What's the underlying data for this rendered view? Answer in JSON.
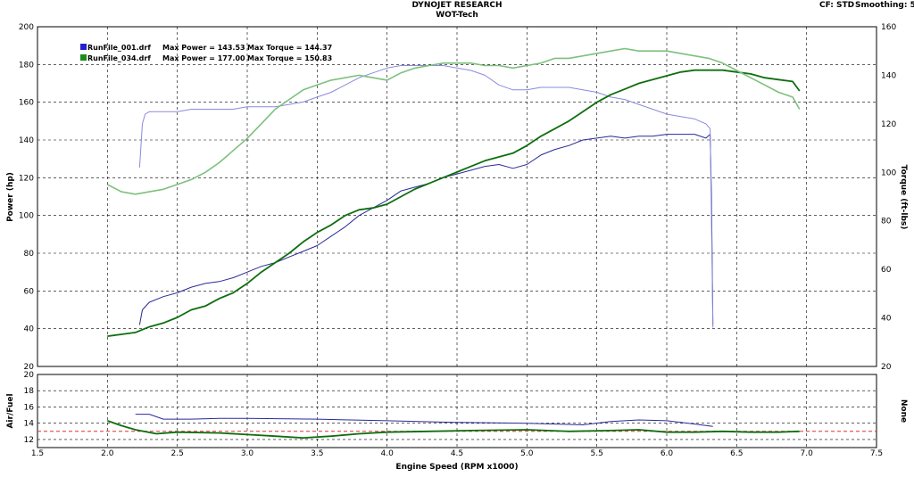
{
  "header": {
    "title": "DYNOJET RESEARCH",
    "subtitle": "WOT-Tech",
    "cf_label": "CF: STD",
    "smoothing_label": "Smoothing: 5"
  },
  "chart_data": [
    {
      "type": "line",
      "xlabel": "Engine Speed (RPM x1000)",
      "ylabel": "Power (hp)",
      "y2label": "Torque (ft-lbs)",
      "xlim": [
        1.5,
        7.5
      ],
      "ylim": [
        20,
        200
      ],
      "y2lim": [
        20,
        160
      ],
      "x_ticks": [
        "1.5",
        "2.0",
        "2.5",
        "3.0",
        "3.5",
        "4.0",
        "4.5",
        "5.0",
        "5.5",
        "6.0",
        "6.5",
        "7.0",
        "7.5"
      ],
      "y_ticks": [
        "20",
        "40",
        "60",
        "80",
        "100",
        "120",
        "140",
        "160",
        "180",
        "200"
      ],
      "y2_ticks": [
        "20",
        "40",
        "60",
        "80",
        "100",
        "120",
        "140",
        "160"
      ],
      "grid": true,
      "legend_position": "top-left",
      "legend": [
        {
          "file": "RunFile_001.drf",
          "max_power_label": "Max Power = 143.53",
          "max_torque_label": "Max Torque = 144.37",
          "color": "#2222cc"
        },
        {
          "file": "RunFile_034.drf",
          "max_power_label": "Max Power = 177.00",
          "max_torque_label": "Max Torque = 150.83",
          "color": "#1a8c1a"
        }
      ],
      "series": [
        {
          "name": "RunFile_001.drf",
          "measure": "power",
          "axis": "left",
          "color": "#2a2a9a",
          "x": [
            2.23,
            2.25,
            2.3,
            2.4,
            2.5,
            2.6,
            2.7,
            2.8,
            2.9,
            3.0,
            3.1,
            3.2,
            3.3,
            3.4,
            3.5,
            3.6,
            3.7,
            3.8,
            3.9,
            4.0,
            4.1,
            4.2,
            4.3,
            4.4,
            4.5,
            4.6,
            4.7,
            4.8,
            4.9,
            5.0,
            5.1,
            5.2,
            5.3,
            5.4,
            5.5,
            5.6,
            5.7,
            5.8,
            5.9,
            6.0,
            6.1,
            6.2,
            6.28,
            6.31,
            6.32,
            6.33
          ],
          "y": [
            42,
            50,
            54,
            57,
            59,
            62,
            64,
            65,
            67,
            70,
            73,
            75,
            78,
            81,
            84,
            89,
            94,
            100,
            104,
            108,
            113,
            115,
            117,
            120,
            122,
            124,
            126,
            127,
            125,
            127,
            132,
            135,
            137,
            140,
            141,
            142,
            141,
            142,
            142,
            143,
            143,
            143,
            141,
            143,
            110,
            42
          ]
        },
        {
          "name": "RunFile_001.drf",
          "measure": "torque",
          "axis": "right",
          "color": "#8a8ae0",
          "x": [
            2.23,
            2.25,
            2.27,
            2.3,
            2.4,
            2.5,
            2.6,
            2.7,
            2.8,
            2.9,
            3.0,
            3.1,
            3.2,
            3.3,
            3.4,
            3.5,
            3.6,
            3.7,
            3.8,
            3.9,
            4.0,
            4.1,
            4.2,
            4.3,
            4.4,
            4.5,
            4.6,
            4.7,
            4.8,
            4.9,
            5.0,
            5.1,
            5.2,
            5.3,
            5.4,
            5.5,
            5.6,
            5.7,
            5.8,
            5.9,
            6.0,
            6.1,
            6.2,
            6.28,
            6.31,
            6.32,
            6.33
          ],
          "y": [
            102,
            120,
            124,
            125,
            125,
            125,
            126,
            126,
            126,
            126,
            127,
            127,
            127,
            128,
            129,
            131,
            133,
            136,
            139,
            141,
            143,
            144,
            144,
            144,
            144,
            143,
            142,
            140,
            136,
            134,
            134,
            135,
            135,
            135,
            134,
            133,
            131,
            130,
            128,
            126,
            124,
            123,
            122,
            120,
            118,
            80,
            36
          ]
        },
        {
          "name": "RunFile_034.drf",
          "measure": "power",
          "axis": "left",
          "color": "#0e6e0e",
          "x": [
            2.0,
            2.1,
            2.2,
            2.3,
            2.4,
            2.5,
            2.6,
            2.7,
            2.8,
            2.9,
            3.0,
            3.1,
            3.2,
            3.3,
            3.4,
            3.5,
            3.6,
            3.7,
            3.8,
            3.9,
            4.0,
            4.1,
            4.2,
            4.3,
            4.4,
            4.5,
            4.6,
            4.7,
            4.8,
            4.9,
            5.0,
            5.1,
            5.2,
            5.3,
            5.4,
            5.5,
            5.6,
            5.7,
            5.8,
            5.9,
            6.0,
            6.1,
            6.2,
            6.3,
            6.4,
            6.5,
            6.6,
            6.7,
            6.8,
            6.9,
            6.95
          ],
          "y": [
            36,
            37,
            38,
            41,
            43,
            46,
            50,
            52,
            56,
            59,
            64,
            70,
            75,
            80,
            86,
            91,
            95,
            100,
            103,
            104,
            106,
            110,
            114,
            117,
            120,
            123,
            126,
            129,
            131,
            133,
            137,
            142,
            146,
            150,
            155,
            160,
            164,
            167,
            170,
            172,
            174,
            176,
            177,
            177,
            177,
            176,
            175,
            173,
            172,
            171,
            166
          ]
        },
        {
          "name": "RunFile_034.drf",
          "measure": "torque",
          "axis": "right",
          "color": "#7dc07d",
          "x": [
            2.0,
            2.1,
            2.2,
            2.3,
            2.4,
            2.5,
            2.6,
            2.7,
            2.8,
            2.9,
            3.0,
            3.1,
            3.2,
            3.3,
            3.4,
            3.5,
            3.6,
            3.7,
            3.8,
            3.9,
            4.0,
            4.1,
            4.2,
            4.3,
            4.4,
            4.5,
            4.6,
            4.7,
            4.8,
            4.9,
            5.0,
            5.1,
            5.2,
            5.3,
            5.4,
            5.5,
            5.6,
            5.7,
            5.8,
            5.9,
            6.0,
            6.1,
            6.2,
            6.3,
            6.4,
            6.5,
            6.6,
            6.7,
            6.8,
            6.9,
            6.95
          ],
          "y": [
            95,
            92,
            91,
            92,
            93,
            95,
            97,
            100,
            104,
            109,
            114,
            120,
            126,
            130,
            134,
            136,
            138,
            139,
            140,
            139,
            138,
            141,
            143,
            144,
            145,
            145,
            145,
            144,
            144,
            143,
            144,
            145,
            147,
            147,
            148,
            149,
            150,
            151,
            150,
            150,
            150,
            149,
            148,
            147,
            145,
            142,
            139,
            136,
            133,
            131,
            126
          ]
        }
      ]
    },
    {
      "type": "line",
      "xlabel": "Engine Speed (RPM x1000)",
      "ylabel": "Air/Fuel",
      "y2label": "None",
      "xlim": [
        1.5,
        7.5
      ],
      "ylim": [
        11,
        20
      ],
      "y_ticks": [
        "12",
        "14",
        "16",
        "18",
        "20"
      ],
      "grid": true,
      "reference_line": {
        "y": 13,
        "color": "#e03030",
        "style": "dashed"
      },
      "series": [
        {
          "name": "RunFile_001.drf",
          "color": "#2a2a9a",
          "x": [
            2.2,
            2.3,
            2.4,
            2.6,
            2.8,
            3.0,
            3.5,
            4.0,
            4.5,
            5.0,
            5.2,
            5.4,
            5.6,
            5.8,
            6.0,
            6.2,
            6.33
          ],
          "y": [
            15.1,
            15.1,
            14.5,
            14.5,
            14.6,
            14.6,
            14.5,
            14.3,
            14.1,
            14.0,
            13.9,
            13.8,
            14.2,
            14.4,
            14.3,
            13.9,
            13.6
          ]
        },
        {
          "name": "RunFile_034.drf",
          "color": "#0e6e0e",
          "x": [
            2.0,
            2.1,
            2.2,
            2.35,
            2.5,
            2.8,
            3.0,
            3.2,
            3.4,
            3.6,
            3.8,
            4.0,
            4.3,
            4.6,
            5.0,
            5.3,
            5.6,
            5.8,
            6.0,
            6.2,
            6.4,
            6.6,
            6.8,
            6.95
          ],
          "y": [
            14.3,
            13.7,
            13.2,
            12.7,
            12.9,
            12.8,
            12.6,
            12.4,
            12.2,
            12.4,
            12.7,
            12.9,
            13.0,
            13.1,
            13.2,
            13.0,
            13.1,
            13.2,
            12.9,
            12.9,
            13.0,
            12.9,
            12.9,
            13.0
          ]
        }
      ]
    }
  ]
}
